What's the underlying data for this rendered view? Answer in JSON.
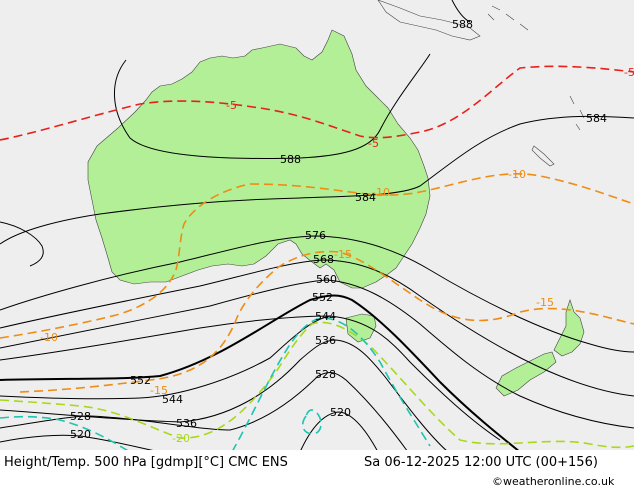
{
  "map": {
    "colors": {
      "ocean": "#eeeeee",
      "land": "#b2ef96",
      "height_contour": "#000000",
      "temp_warm": "#e8201a",
      "temp_mid": "#ef8c14",
      "temp_cool": "#a8d81c",
      "temp_cold": "#1ec4b0"
    },
    "height_labels": [
      "588",
      "584",
      "588",
      "584",
      "576",
      "568",
      "560",
      "552",
      "544",
      "536",
      "528",
      "520",
      "552",
      "544",
      "536",
      "528",
      "520"
    ],
    "temp_labels": [
      "-5",
      "-5",
      "-5",
      "-10",
      "-10",
      "-10",
      "-15",
      "-15",
      "-15",
      "-20"
    ]
  },
  "footer": {
    "title": "Height/Temp. 500 hPa [gdmp][°C] CMC ENS",
    "datetime": "Sa 06-12-2025 12:00 UTC (00+156)",
    "credit": "©weatheronline.co.uk"
  }
}
